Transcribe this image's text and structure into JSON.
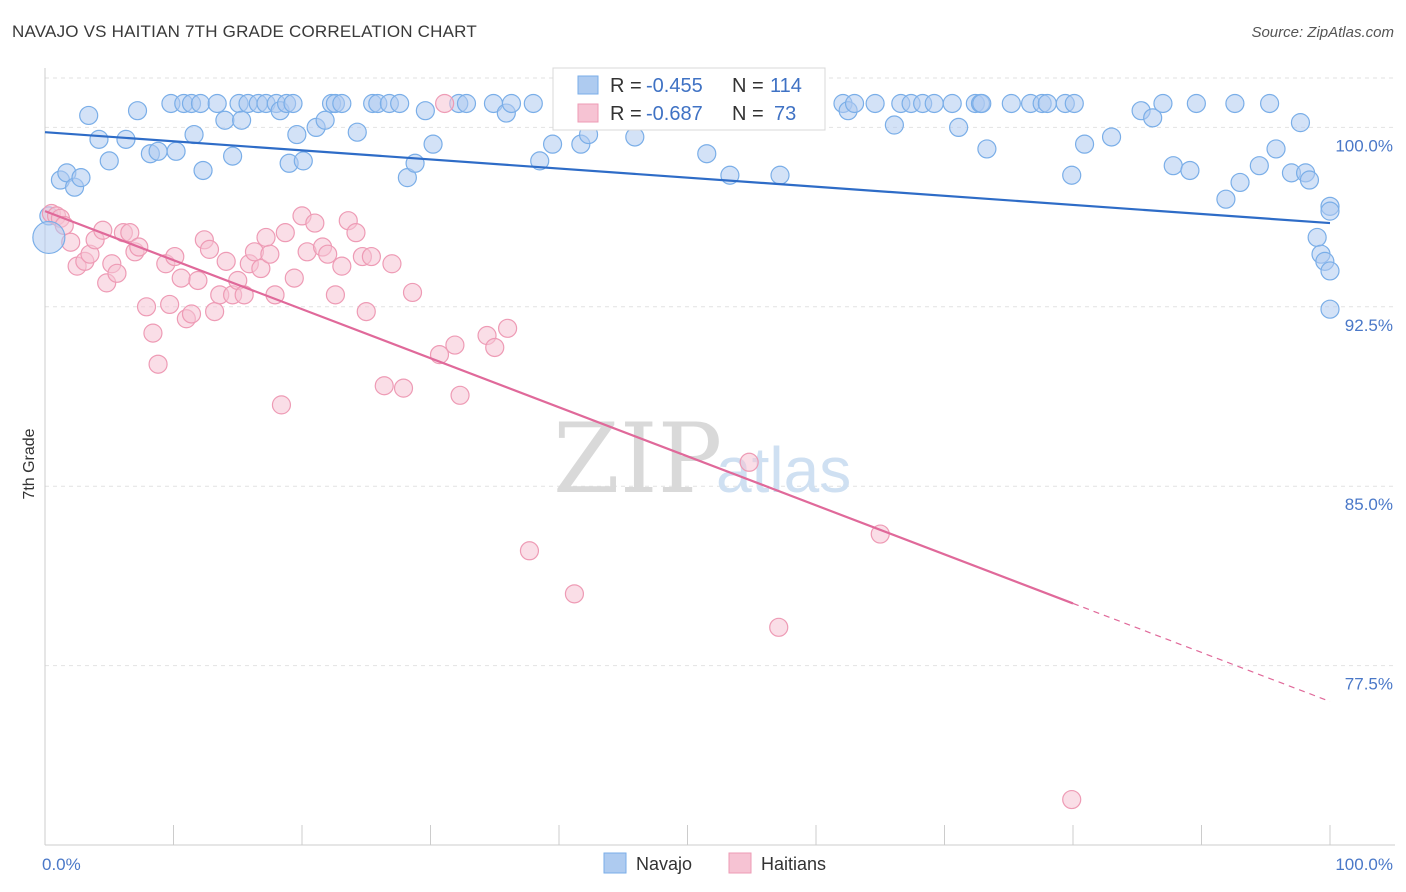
{
  "title": "NAVAJO VS HAITIAN 7TH GRADE CORRELATION CHART",
  "source": "Source: ZipAtlas.com",
  "watermark": {
    "zip": "ZIP",
    "atlas": "atlas"
  },
  "chart_data": {
    "type": "scatter",
    "ylabel": "7th Grade",
    "xlim": [
      0,
      100
    ],
    "ylim": [
      70,
      102.4
    ],
    "y_ticks": [
      {
        "v": 100,
        "label": "100.0%"
      },
      {
        "v": 92.5,
        "label": "92.5%"
      },
      {
        "v": 85,
        "label": "85.0%"
      },
      {
        "v": 77.5,
        "label": "77.5%"
      }
    ],
    "x_tick_labels": [
      {
        "v": 0,
        "label": "0.0%"
      },
      {
        "v": 100,
        "label": "100.0%"
      }
    ],
    "legend": [
      {
        "r_label": "R =",
        "r": "-0.455",
        "n_label": "N =",
        "n": "114"
      },
      {
        "r_label": "R =",
        "r": "-0.687",
        "n_label": "N =",
        "n": "73"
      }
    ],
    "series": [
      {
        "name": "Navajo",
        "color": "#7aaee8",
        "fill": "#aecbf0",
        "trend": {
          "x0": 0,
          "y0": 99.8,
          "x1": 100,
          "y1": 96.0,
          "solid_until": 100
        },
        "points": [
          [
            0.3,
            96.3
          ],
          [
            1.2,
            97.8
          ],
          [
            1.7,
            98.1
          ],
          [
            2.3,
            97.5
          ],
          [
            2.8,
            97.9
          ],
          [
            3.4,
            100.5
          ],
          [
            4.2,
            99.5
          ],
          [
            5.0,
            98.6
          ],
          [
            6.3,
            99.5
          ],
          [
            7.2,
            100.7
          ],
          [
            8.2,
            98.9
          ],
          [
            8.8,
            99.0
          ],
          [
            9.8,
            101.0
          ],
          [
            10.2,
            99.0
          ],
          [
            10.8,
            101.0
          ],
          [
            11.4,
            101.0
          ],
          [
            11.6,
            99.7
          ],
          [
            12.1,
            101.0
          ],
          [
            12.3,
            98.2
          ],
          [
            13.4,
            101.0
          ],
          [
            14.0,
            100.3
          ],
          [
            14.6,
            98.8
          ],
          [
            15.1,
            101.0
          ],
          [
            15.3,
            100.3
          ],
          [
            15.8,
            101.0
          ],
          [
            16.6,
            101.0
          ],
          [
            17.2,
            101.0
          ],
          [
            18.0,
            101.0
          ],
          [
            18.3,
            100.7
          ],
          [
            18.8,
            101.0
          ],
          [
            19.0,
            98.5
          ],
          [
            19.3,
            101.0
          ],
          [
            19.6,
            99.7
          ],
          [
            20.1,
            98.6
          ],
          [
            21.1,
            100.0
          ],
          [
            21.8,
            100.3
          ],
          [
            22.3,
            101.0
          ],
          [
            22.6,
            101.0
          ],
          [
            23.1,
            101.0
          ],
          [
            24.3,
            99.8
          ],
          [
            25.5,
            101.0
          ],
          [
            25.9,
            101.0
          ],
          [
            26.8,
            101.0
          ],
          [
            27.6,
            101.0
          ],
          [
            28.2,
            97.9
          ],
          [
            28.8,
            98.5
          ],
          [
            29.6,
            100.7
          ],
          [
            30.2,
            99.3
          ],
          [
            32.2,
            101.0
          ],
          [
            32.8,
            101.0
          ],
          [
            34.9,
            101.0
          ],
          [
            35.9,
            100.6
          ],
          [
            36.3,
            101.0
          ],
          [
            38.0,
            101.0
          ],
          [
            38.5,
            98.6
          ],
          [
            39.5,
            99.3
          ],
          [
            41.7,
            99.3
          ],
          [
            42.3,
            99.7
          ],
          [
            43.5,
            101.0
          ],
          [
            45.9,
            99.6
          ],
          [
            47.1,
            101.0
          ],
          [
            51.5,
            98.9
          ],
          [
            53.3,
            98.0
          ],
          [
            55.3,
            100.8
          ],
          [
            56.8,
            101.0
          ],
          [
            57.2,
            98.0
          ],
          [
            58.5,
            101.0
          ],
          [
            62.1,
            101.0
          ],
          [
            62.5,
            100.7
          ],
          [
            63.0,
            101.0
          ],
          [
            64.6,
            101.0
          ],
          [
            66.1,
            100.1
          ],
          [
            66.6,
            101.0
          ],
          [
            67.4,
            101.0
          ],
          [
            68.3,
            101.0
          ],
          [
            69.2,
            101.0
          ],
          [
            70.6,
            101.0
          ],
          [
            71.1,
            100.0
          ],
          [
            72.4,
            101.0
          ],
          [
            72.8,
            101.0
          ],
          [
            72.9,
            101.0
          ],
          [
            73.3,
            99.1
          ],
          [
            75.2,
            101.0
          ],
          [
            76.7,
            101.0
          ],
          [
            77.6,
            101.0
          ],
          [
            78.0,
            101.0
          ],
          [
            79.4,
            101.0
          ],
          [
            79.9,
            98.0
          ],
          [
            80.1,
            101.0
          ],
          [
            80.9,
            99.3
          ],
          [
            83.0,
            99.6
          ],
          [
            85.3,
            100.7
          ],
          [
            86.2,
            100.4
          ],
          [
            87.0,
            101.0
          ],
          [
            87.8,
            98.4
          ],
          [
            89.1,
            98.2
          ],
          [
            89.6,
            101.0
          ],
          [
            91.9,
            97.0
          ],
          [
            92.6,
            101.0
          ],
          [
            93.0,
            97.7
          ],
          [
            94.5,
            98.4
          ],
          [
            95.3,
            101.0
          ],
          [
            95.8,
            99.1
          ],
          [
            97.0,
            98.1
          ],
          [
            97.7,
            100.2
          ],
          [
            98.1,
            98.1
          ],
          [
            98.4,
            97.8
          ],
          [
            99.0,
            95.4
          ],
          [
            99.3,
            94.7
          ],
          [
            99.6,
            94.4
          ],
          [
            100.0,
            96.7
          ],
          [
            100.0,
            92.4
          ],
          [
            100.0,
            94.0
          ],
          [
            100.0,
            96.5
          ]
        ]
      },
      {
        "name": "Haitians",
        "color": "#ee9bb5",
        "fill": "#f6c3d3",
        "trend": {
          "x0": 0,
          "y0": 96.5,
          "x1": 100,
          "y1": 76.0,
          "solid_until": 80
        },
        "points": [
          [
            0.5,
            96.4
          ],
          [
            0.9,
            96.3
          ],
          [
            1.2,
            96.2
          ],
          [
            1.5,
            95.9
          ],
          [
            2.0,
            95.2
          ],
          [
            2.5,
            94.2
          ],
          [
            3.1,
            94.4
          ],
          [
            3.5,
            94.7
          ],
          [
            3.9,
            95.3
          ],
          [
            4.5,
            95.7
          ],
          [
            4.8,
            93.5
          ],
          [
            5.2,
            94.3
          ],
          [
            5.6,
            93.9
          ],
          [
            6.1,
            95.6
          ],
          [
            6.6,
            95.6
          ],
          [
            7.0,
            94.8
          ],
          [
            7.3,
            95.0
          ],
          [
            7.9,
            92.5
          ],
          [
            8.4,
            91.4
          ],
          [
            8.8,
            90.1
          ],
          [
            9.4,
            94.3
          ],
          [
            9.7,
            92.6
          ],
          [
            10.1,
            94.6
          ],
          [
            10.6,
            93.7
          ],
          [
            11.0,
            92.0
          ],
          [
            11.4,
            92.2
          ],
          [
            11.9,
            93.6
          ],
          [
            12.4,
            95.3
          ],
          [
            12.8,
            94.9
          ],
          [
            13.2,
            92.3
          ],
          [
            13.6,
            93.0
          ],
          [
            14.1,
            94.4
          ],
          [
            14.6,
            93.0
          ],
          [
            15.0,
            93.6
          ],
          [
            15.5,
            93.0
          ],
          [
            15.9,
            94.3
          ],
          [
            16.3,
            94.8
          ],
          [
            16.8,
            94.1
          ],
          [
            17.2,
            95.4
          ],
          [
            17.5,
            94.7
          ],
          [
            17.9,
            93.0
          ],
          [
            18.4,
            88.4
          ],
          [
            18.7,
            95.6
          ],
          [
            19.4,
            93.7
          ],
          [
            20.0,
            96.3
          ],
          [
            20.4,
            94.8
          ],
          [
            21.0,
            96.0
          ],
          [
            21.6,
            95.0
          ],
          [
            22.0,
            94.7
          ],
          [
            22.6,
            93.0
          ],
          [
            23.1,
            94.2
          ],
          [
            23.6,
            96.1
          ],
          [
            24.2,
            95.6
          ],
          [
            24.7,
            94.6
          ],
          [
            25.0,
            92.3
          ],
          [
            25.4,
            94.6
          ],
          [
            26.4,
            89.2
          ],
          [
            27.0,
            94.3
          ],
          [
            27.9,
            89.1
          ],
          [
            28.6,
            93.1
          ],
          [
            30.7,
            90.5
          ],
          [
            31.1,
            101.0
          ],
          [
            31.9,
            90.9
          ],
          [
            32.3,
            88.8
          ],
          [
            34.4,
            91.3
          ],
          [
            35.0,
            90.8
          ],
          [
            36.0,
            91.6
          ],
          [
            37.7,
            82.3
          ],
          [
            41.2,
            80.5
          ],
          [
            54.8,
            86.0
          ],
          [
            57.1,
            79.1
          ],
          [
            65.0,
            83.0
          ],
          [
            79.9,
            71.9
          ]
        ]
      }
    ]
  }
}
